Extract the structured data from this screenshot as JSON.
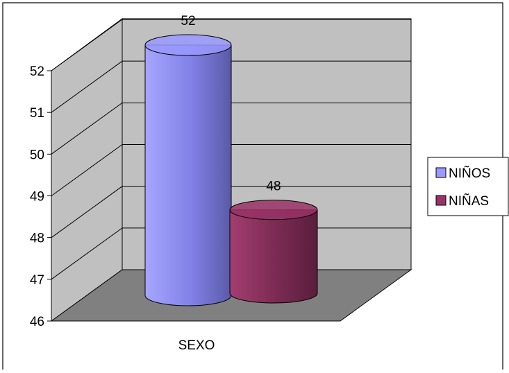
{
  "chart_data": {
    "type": "bar",
    "style": "3d-cylinder",
    "categories": [
      "SEXO"
    ],
    "series": [
      {
        "name": "NIÑOS",
        "values": [
          52
        ],
        "color": "#9999FF"
      },
      {
        "name": "NIÑAS",
        "values": [
          48
        ],
        "color": "#993366"
      }
    ],
    "data_labels": [
      "52",
      "48"
    ],
    "y_ticks": [
      "46",
      "47",
      "48",
      "49",
      "50",
      "51",
      "52"
    ],
    "ylim": [
      46,
      52
    ],
    "grid": true,
    "legend_position": "right",
    "colors": {
      "wall": "#C0C0C0",
      "floor": "#808080"
    }
  }
}
